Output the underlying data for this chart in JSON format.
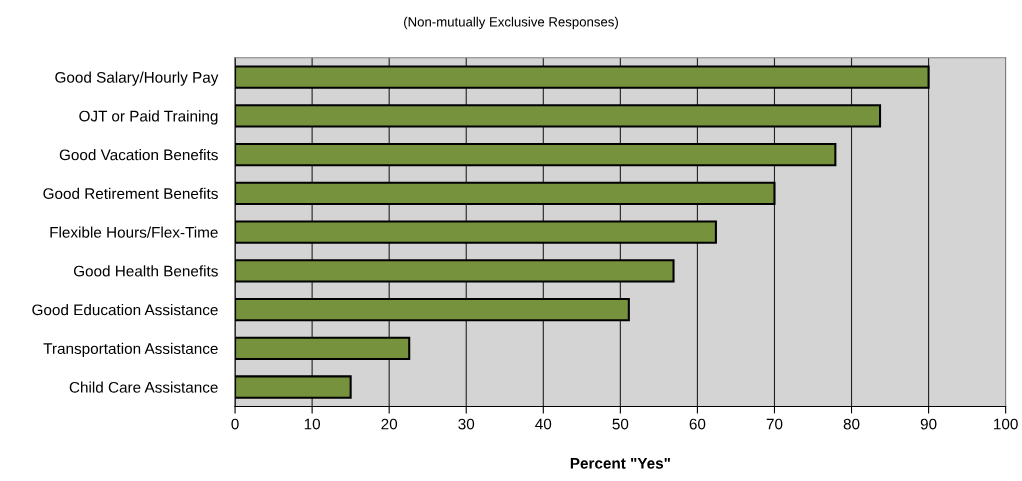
{
  "chart_data": {
    "type": "bar",
    "orientation": "horizontal",
    "subtitle": "(Non-mutually Exclusive Responses)",
    "xlabel": "Percent \"Yes\"",
    "categories": [
      "Good Salary/Hourly Pay",
      "OJT or Paid Training",
      "Good Vacation Benefits",
      "Good Retirement Benefits",
      "Flexible Hours/Flex-Time",
      "Good Health Benefits",
      "Good Education Assistance",
      "Transportation Assistance",
      "Child Care Assistance"
    ],
    "values": [
      90,
      83.7,
      77.9,
      70,
      62.4,
      56.9,
      51.1,
      22.6,
      15
    ],
    "color": "#76923c",
    "xlim": [
      0,
      100
    ],
    "xticks": [
      0,
      10,
      20,
      30,
      40,
      50,
      60,
      70,
      80,
      90,
      100
    ],
    "grid": "x",
    "legend": false
  }
}
